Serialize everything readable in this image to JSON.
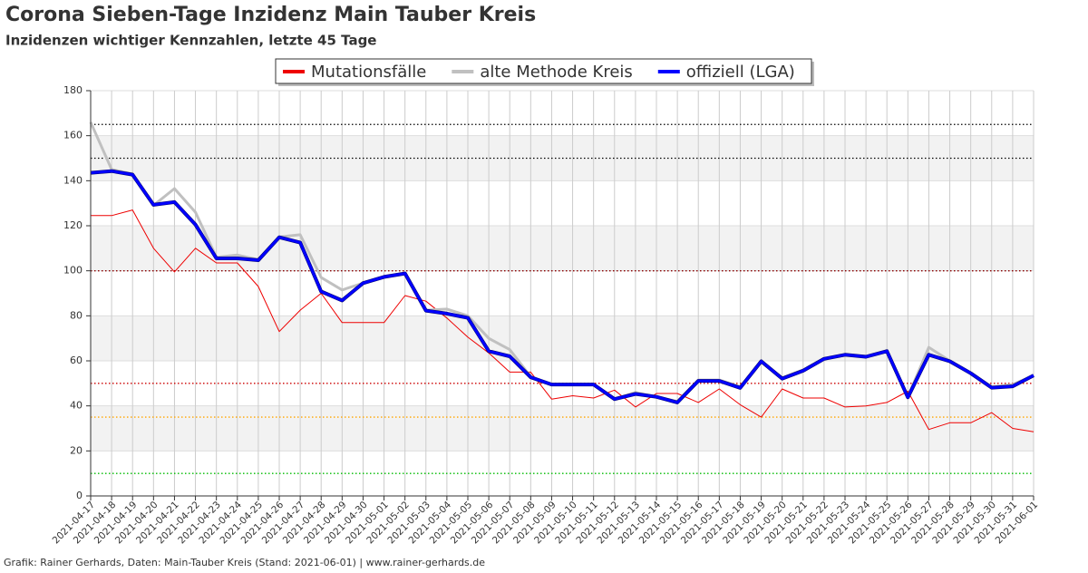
{
  "chart_data": {
    "type": "line",
    "title": "Corona Sieben-Tage Inzidenz Main Tauber Kreis",
    "subtitle": "Inzidenzen wichtiger Kennzahlen, letzte 45 Tage",
    "footer": "Grafik: Rainer Gerhards, Daten: Main-Tauber Kreis (Stand: 2021-06-01) | www.rainer-gerhards.de",
    "categories": [
      "2021-04-17",
      "2021-04-18",
      "2021-04-19",
      "2021-04-20",
      "2021-04-21",
      "2021-04-22",
      "2021-04-23",
      "2021-04-24",
      "2021-04-25",
      "2021-04-26",
      "2021-04-27",
      "2021-04-28",
      "2021-04-29",
      "2021-04-30",
      "2021-05-01",
      "2021-05-02",
      "2021-05-03",
      "2021-05-04",
      "2021-05-05",
      "2021-05-06",
      "2021-05-07",
      "2021-05-08",
      "2021-05-09",
      "2021-05-10",
      "2021-05-11",
      "2021-05-12",
      "2021-05-13",
      "2021-05-14",
      "2021-05-15",
      "2021-05-16",
      "2021-05-17",
      "2021-05-18",
      "2021-05-19",
      "2021-05-20",
      "2021-05-21",
      "2021-05-22",
      "2021-05-23",
      "2021-05-24",
      "2021-05-25",
      "2021-05-26",
      "2021-05-27",
      "2021-05-28",
      "2021-05-29",
      "2021-05-30",
      "2021-05-31",
      "2021-06-01"
    ],
    "series": [
      {
        "name": "Mutationsfälle",
        "color": "#ee0000",
        "width": 1,
        "values": [
          124.5,
          124.5,
          127,
          110,
          99.5,
          110,
          103.5,
          103.5,
          93,
          73,
          82.5,
          90,
          77,
          77,
          77,
          89,
          86.5,
          79,
          70.5,
          63.5,
          55,
          55,
          43,
          44.5,
          43.5,
          47,
          39.5,
          45.5,
          45.5,
          41.5,
          47.5,
          40.5,
          35,
          47.5,
          43.5,
          43.5,
          39.5,
          40,
          41.5,
          46.5,
          29.5,
          32.5,
          32.5,
          37,
          30,
          28.5
        ]
      },
      {
        "name": "alte Methode Kreis",
        "color": "#c0c0c0",
        "width": 3,
        "values": [
          166,
          145,
          143,
          129,
          136.5,
          126,
          106,
          107,
          105,
          115,
          116,
          97,
          91.5,
          94.5,
          97,
          98.8,
          82.5,
          83,
          80,
          70,
          65,
          53,
          49.5,
          49.5,
          49.5,
          43,
          46,
          44,
          42,
          51.5,
          51.5,
          48.5,
          59.5,
          52.5,
          56,
          61,
          62.5,
          62,
          64.5,
          44,
          66,
          60,
          54.5,
          48.5,
          49.5,
          53.5
        ]
      },
      {
        "name": "offiziell (LGA)",
        "color": "#0000ff",
        "width": 3,
        "values": [
          143.5,
          144.3,
          142.7,
          129.3,
          130.5,
          120.5,
          105.5,
          105.5,
          104.7,
          114.9,
          112.5,
          90.8,
          86.8,
          94.5,
          97.3,
          98.8,
          82.3,
          81,
          79.1,
          64.3,
          62,
          52.7,
          49.5,
          49.5,
          49.5,
          43,
          45.3,
          44,
          41.5,
          51.1,
          51.1,
          48,
          59.8,
          52.1,
          55.6,
          60.9,
          62.7,
          61.8,
          64.3,
          43.8,
          62.7,
          59.8,
          54.5,
          48.1,
          48.7,
          53.5
        ]
      }
    ],
    "reference_lines": [
      {
        "value": 165,
        "color": "#000000"
      },
      {
        "value": 150,
        "color": "#000000"
      },
      {
        "value": 100,
        "color": "#8b0000"
      },
      {
        "value": 50,
        "color": "#cc0000"
      },
      {
        "value": 35,
        "color": "#ffa500"
      },
      {
        "value": 10,
        "color": "#00bb00"
      }
    ],
    "ylim": [
      0,
      180
    ],
    "yticks": [
      0,
      20,
      40,
      60,
      80,
      100,
      120,
      140,
      160,
      180
    ],
    "grid": true
  }
}
